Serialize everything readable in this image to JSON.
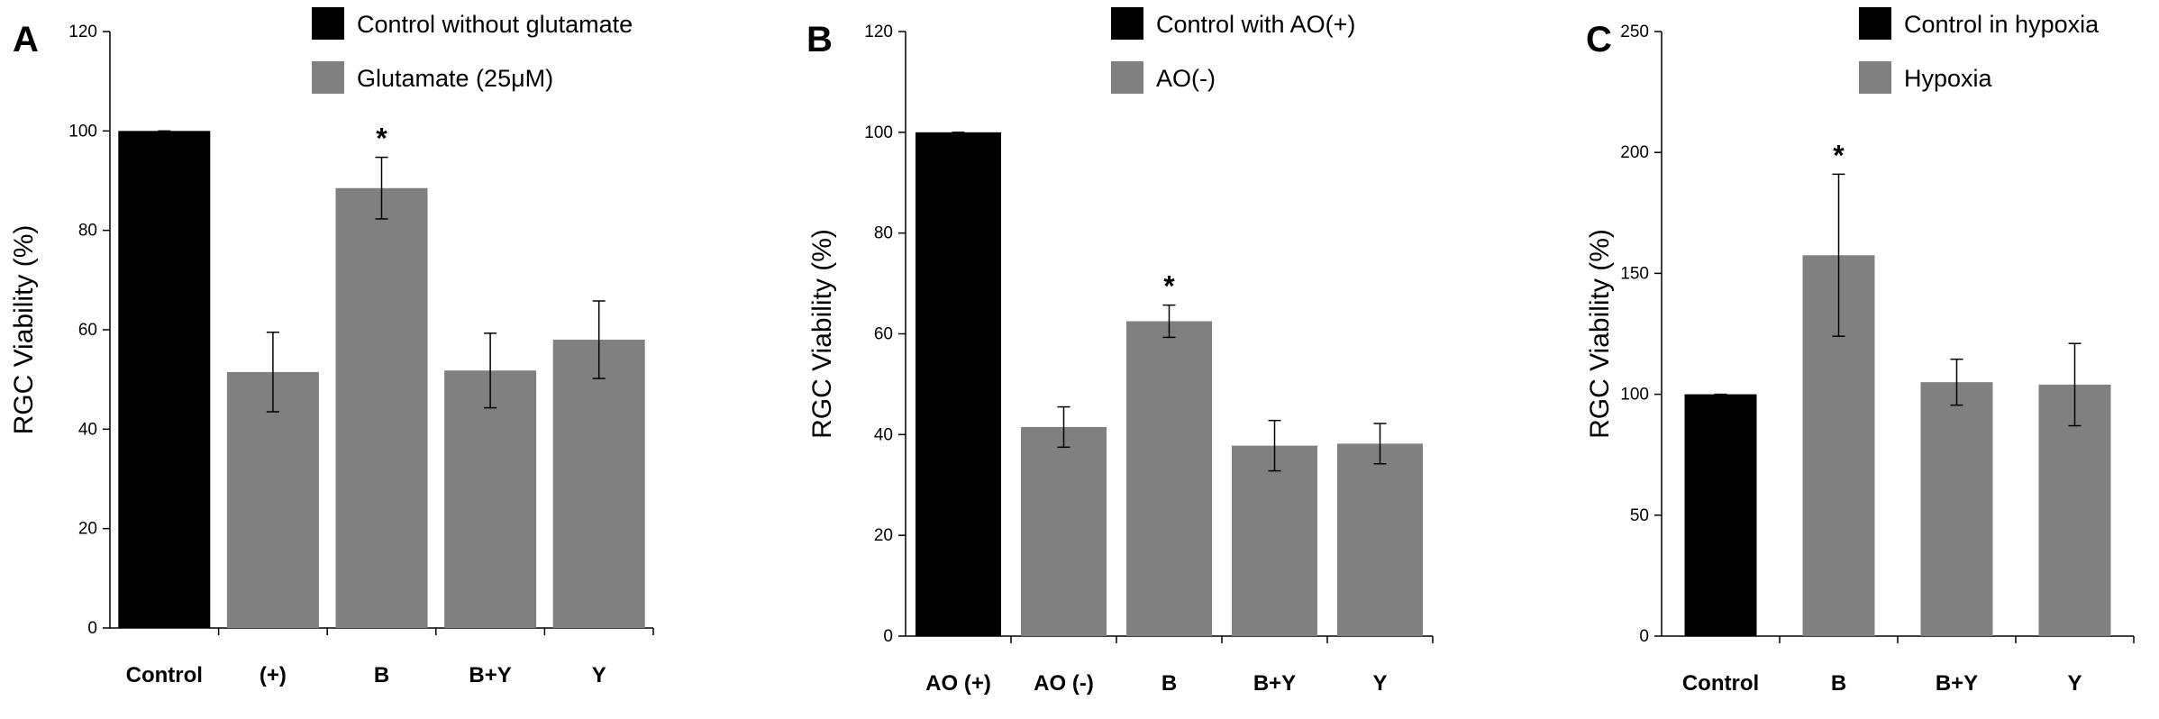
{
  "chart_data": [
    {
      "type": "bar",
      "panel": "A",
      "ylabel": "RGC Viability (%)",
      "ylim": [
        0,
        120
      ],
      "yticks": [
        0,
        20,
        40,
        60,
        80,
        100,
        120
      ],
      "categories": [
        "Control",
        "(+)",
        "B",
        "B+Y",
        "Y"
      ],
      "values": [
        100,
        51.5,
        88.5,
        51.8,
        58
      ],
      "errors": [
        0.3,
        8,
        6.2,
        7.5,
        7.8
      ],
      "bar_colors": [
        "#000000",
        "#808080",
        "#808080",
        "#808080",
        "#808080"
      ],
      "significance": [
        "",
        "",
        "*",
        "",
        ""
      ],
      "legend": [
        {
          "label": "Control without glutamate",
          "color": "#000000"
        },
        {
          "label": "Glutamate (25μM)",
          "color": "#808080"
        }
      ],
      "legend_position": "top-right"
    },
    {
      "type": "bar",
      "panel": "B",
      "ylabel": "RGC Viability (%)",
      "ylim": [
        0,
        120
      ],
      "yticks": [
        0,
        20,
        40,
        60,
        80,
        100,
        120
      ],
      "categories": [
        "AO (+)",
        "AO (-)",
        "B",
        "B+Y",
        "Y"
      ],
      "values": [
        100,
        41.5,
        62.5,
        37.8,
        38.2
      ],
      "errors": [
        0.3,
        4,
        3.2,
        5,
        4
      ],
      "bar_colors": [
        "#000000",
        "#808080",
        "#808080",
        "#808080",
        "#808080"
      ],
      "significance": [
        "",
        "",
        "*",
        "",
        ""
      ],
      "legend": [
        {
          "label": "Control with AO(+)",
          "color": "#000000"
        },
        {
          "label": "AO(-)",
          "color": "#808080"
        }
      ],
      "legend_position": "top-right"
    },
    {
      "type": "bar",
      "panel": "C",
      "ylabel": "RGC Viability (%)",
      "ylim": [
        0,
        250
      ],
      "yticks": [
        0,
        50,
        100,
        150,
        200,
        250
      ],
      "categories": [
        "Control",
        "B",
        "B+Y",
        "Y"
      ],
      "values": [
        100,
        157.5,
        105,
        104
      ],
      "errors": [
        0.5,
        33.5,
        9.5,
        17
      ],
      "bar_colors": [
        "#000000",
        "#808080",
        "#808080",
        "#808080"
      ],
      "significance": [
        "",
        "*",
        "",
        ""
      ],
      "legend": [
        {
          "label": "Control in hypoxia",
          "color": "#000000"
        },
        {
          "label": "Hypoxia",
          "color": "#808080"
        }
      ],
      "legend_position": "top-right"
    }
  ]
}
